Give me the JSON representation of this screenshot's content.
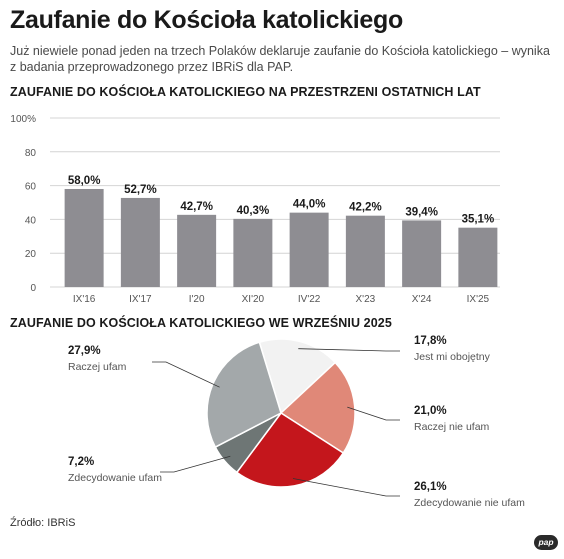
{
  "title": "Zaufanie do Kościoła katolickiego",
  "subtitle": "Już niewiele ponad jeden na trzech Polaków deklaruje zaufanie do Kościoła katolickiego – wynika z badania przeprowadzonego przez IBRiS dla PAP.",
  "source": "Źródło: IBRiS",
  "logo_text": "pap",
  "colors": {
    "bar": "#8e8d92",
    "grid": "#d4d4d4",
    "pie_jest_mi_obojetny": "#f2f2f2",
    "pie_raczej_nie_ufam": "#e08878",
    "pie_zdecydowanie_nie_ufam": "#c4161c",
    "pie_zdecydowanie_ufam": "#6e7675",
    "pie_raczej_ufam": "#a3a8aa"
  },
  "chart_data": [
    {
      "type": "bar",
      "title": "ZAUFANIE DO KOŚCIOŁA KATOLICKIEGO NA PRZESTRZENI OSTATNICH LAT",
      "categories": [
        "IX'16",
        "IX'17",
        "I'20",
        "XI'20",
        "IV'22",
        "X'23",
        "X'24",
        "IX'25"
      ],
      "values": [
        58.0,
        52.7,
        42.7,
        40.3,
        44.0,
        42.2,
        39.4,
        35.1
      ],
      "value_labels": [
        "58,0%",
        "52,7%",
        "42,7%",
        "40,3%",
        "44,0%",
        "42,2%",
        "39,4%",
        "35,1%"
      ],
      "yticks": [
        0,
        20,
        40,
        60,
        80,
        100
      ],
      "ytick_labels": [
        "0",
        "20",
        "40",
        "60",
        "80",
        "100%"
      ],
      "ylim": [
        0,
        100
      ],
      "grid": true
    },
    {
      "type": "pie",
      "title": "ZAUFANIE DO KOŚCIOŁA KATOLICKIEGO WE WRZEŚNIU 2025",
      "slices": [
        {
          "label": "Jest mi obojętny",
          "value": 17.8,
          "value_label": "17,8%"
        },
        {
          "label": "Raczej nie ufam",
          "value": 21.0,
          "value_label": "21,0%"
        },
        {
          "label": "Zdecydowanie nie ufam",
          "value": 26.1,
          "value_label": "26,1%"
        },
        {
          "label": "Zdecydowanie ufam",
          "value": 7.2,
          "value_label": "7,2%"
        },
        {
          "label": "Raczej ufam",
          "value": 27.9,
          "value_label": "27,9%"
        }
      ]
    }
  ]
}
